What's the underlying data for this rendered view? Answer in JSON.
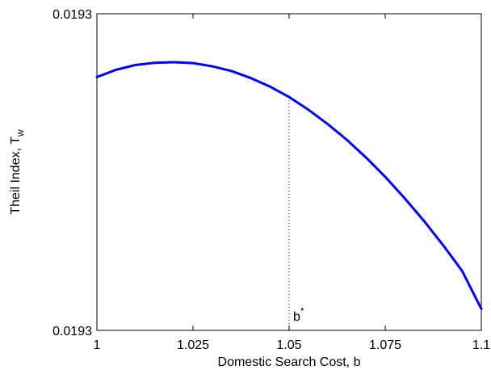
{
  "chart_data": {
    "type": "line",
    "xlabel": "Domestic Search Cost, b",
    "ylabel_main": "Theil Index, T",
    "ylabel_sub": "w",
    "xlim": [
      1.0,
      1.1
    ],
    "ylim": [
      0.0,
      1.0
    ],
    "x_ticks": [
      {
        "value": 1.0,
        "label": "1"
      },
      {
        "value": 1.025,
        "label": "1.025"
      },
      {
        "value": 1.05,
        "label": "1.05"
      },
      {
        "value": 1.075,
        "label": "1.075"
      },
      {
        "value": 1.1,
        "label": "1.1"
      }
    ],
    "y_ticks": [
      {
        "value": 0.0,
        "label": "0.0193"
      },
      {
        "value": 1.0,
        "label": "0.0193"
      }
    ],
    "grid": false,
    "series": [
      {
        "color": "#0000ff",
        "x": [
          1.0,
          1.005,
          1.01,
          1.015,
          1.02,
          1.025,
          1.03,
          1.035,
          1.04,
          1.045,
          1.05,
          1.055,
          1.06,
          1.065,
          1.07,
          1.075,
          1.08,
          1.085,
          1.09,
          1.095,
          1.1
        ],
        "y": [
          0.8,
          0.823,
          0.838,
          0.845,
          0.847,
          0.844,
          0.834,
          0.819,
          0.797,
          0.77,
          0.737,
          0.697,
          0.652,
          0.602,
          0.546,
          0.485,
          0.418,
          0.347,
          0.27,
          0.188,
          0.068
        ]
      }
    ],
    "annotation": {
      "x": 1.05,
      "main": "b",
      "sup": "*",
      "line_style": "dotted"
    }
  }
}
